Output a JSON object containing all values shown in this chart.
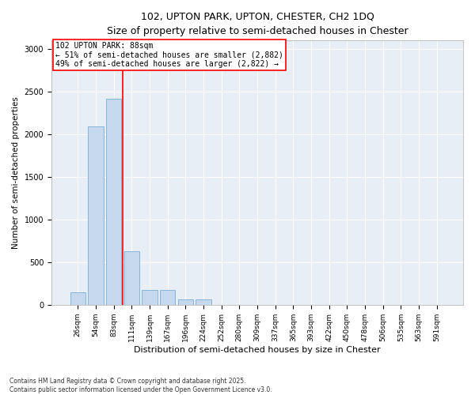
{
  "title_line1": "102, UPTON PARK, UPTON, CHESTER, CH2 1DQ",
  "title_line2": "Size of property relative to semi-detached houses in Chester",
  "xlabel": "Distribution of semi-detached houses by size in Chester",
  "ylabel": "Number of semi-detached properties",
  "bar_color": "#c5d8ee",
  "bar_edge_color": "#7aadd4",
  "categories": [
    "26sqm",
    "54sqm",
    "83sqm",
    "111sqm",
    "139sqm",
    "167sqm",
    "196sqm",
    "224sqm",
    "252sqm",
    "280sqm",
    "309sqm",
    "337sqm",
    "365sqm",
    "393sqm",
    "422sqm",
    "450sqm",
    "478sqm",
    "506sqm",
    "535sqm",
    "563sqm",
    "591sqm"
  ],
  "values": [
    150,
    2090,
    2420,
    630,
    175,
    175,
    65,
    60,
    0,
    0,
    0,
    0,
    0,
    0,
    0,
    0,
    0,
    0,
    0,
    0,
    0
  ],
  "ylim": [
    0,
    3100
  ],
  "yticks": [
    0,
    500,
    1000,
    1500,
    2000,
    2500,
    3000
  ],
  "vline_position": 2.5,
  "annotation_text_line1": "102 UPTON PARK: 88sqm",
  "annotation_text_line2": "← 51% of semi-detached houses are smaller (2,882)",
  "annotation_text_line3": "49% of semi-detached houses are larger (2,822) →",
  "annotation_box_color": "white",
  "annotation_box_edge": "red",
  "background_color": "#e8eef5",
  "footer_line1": "Contains HM Land Registry data © Crown copyright and database right 2025.",
  "footer_line2": "Contains public sector information licensed under the Open Government Licence v3.0."
}
